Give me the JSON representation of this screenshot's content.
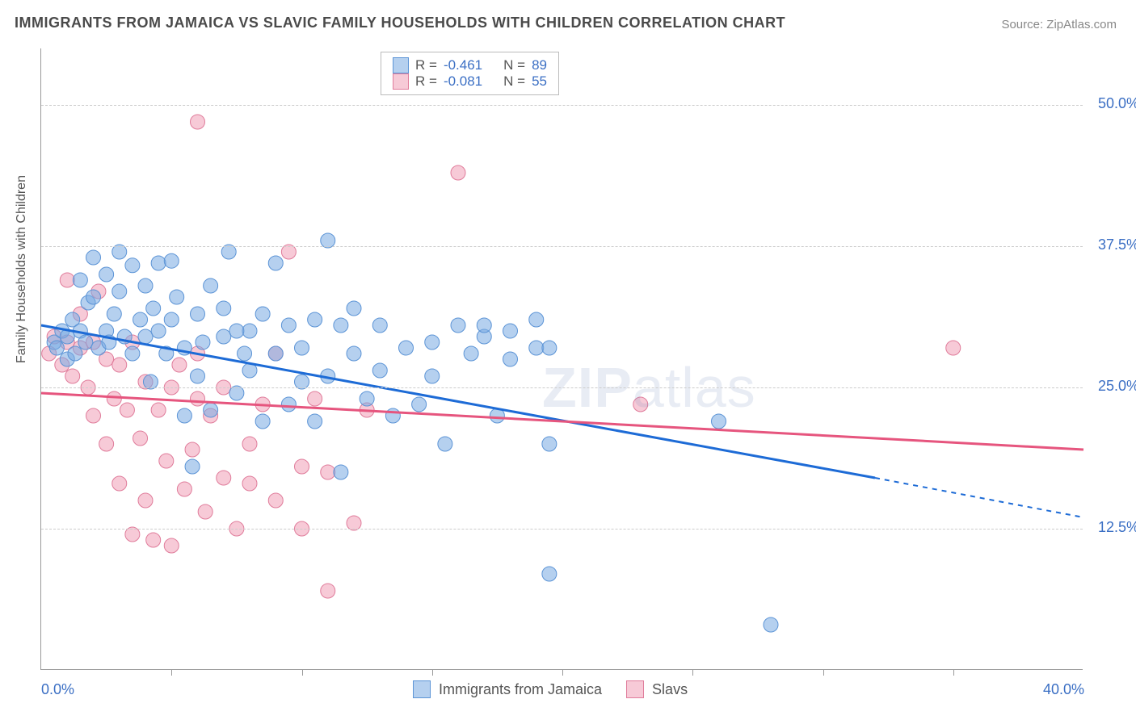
{
  "title": "IMMIGRANTS FROM JAMAICA VS SLAVIC FAMILY HOUSEHOLDS WITH CHILDREN CORRELATION CHART",
  "source": "Source: ZipAtlas.com",
  "ylabel": "Family Households with Children",
  "watermark_a": "ZIP",
  "watermark_b": "atlas",
  "chart": {
    "type": "scatter",
    "xlim": [
      0,
      40
    ],
    "ylim": [
      0,
      55
    ],
    "grid_color": "#cccccc",
    "axis_color": "#999999",
    "background": "#ffffff",
    "tick_label_color": "#3b6fc4",
    "yticks": [
      {
        "v": 12.5,
        "label": "12.5%"
      },
      {
        "v": 25.0,
        "label": "25.0%"
      },
      {
        "v": 37.5,
        "label": "37.5%"
      },
      {
        "v": 50.0,
        "label": "50.0%"
      }
    ],
    "xticks_labeled": [
      {
        "v": 0,
        "label": "0.0%"
      },
      {
        "v": 40,
        "label": "40.0%"
      }
    ],
    "xticks_unlabeled": [
      5,
      10,
      15,
      20,
      25,
      30,
      35
    ],
    "series": [
      {
        "name": "Immigrants from Jamaica",
        "color_fill": "rgba(120,170,225,0.55)",
        "color_stroke": "#5c94d6",
        "trend_color": "#1d6bd6",
        "R": "-0.461",
        "N": "89",
        "marker_radius": 9,
        "trend": {
          "x1": 0,
          "y1": 30.5,
          "x2": 32,
          "y2": 17,
          "dash_from_x": 32,
          "dash_to_x": 40,
          "dash_to_y": 13.5
        },
        "points": [
          [
            0.5,
            29
          ],
          [
            0.6,
            28.5
          ],
          [
            0.8,
            30
          ],
          [
            1,
            27.5
          ],
          [
            1,
            29.5
          ],
          [
            1.2,
            31
          ],
          [
            1.3,
            28
          ],
          [
            1.5,
            34.5
          ],
          [
            1.5,
            30
          ],
          [
            1.7,
            29
          ],
          [
            1.8,
            32.5
          ],
          [
            2,
            33
          ],
          [
            2,
            36.5
          ],
          [
            2.2,
            28.5
          ],
          [
            2.5,
            30
          ],
          [
            2.5,
            35
          ],
          [
            2.6,
            29
          ],
          [
            2.8,
            31.5
          ],
          [
            3,
            37
          ],
          [
            3,
            33.5
          ],
          [
            3.2,
            29.5
          ],
          [
            3.5,
            35.8
          ],
          [
            3.5,
            28
          ],
          [
            3.8,
            31
          ],
          [
            4,
            29.5
          ],
          [
            4,
            34
          ],
          [
            4.2,
            25.5
          ],
          [
            4.5,
            36
          ],
          [
            4.5,
            30
          ],
          [
            4.8,
            28
          ],
          [
            5,
            36.2
          ],
          [
            5,
            31
          ],
          [
            5.2,
            33
          ],
          [
            5.5,
            28.5
          ],
          [
            5.5,
            22.5
          ],
          [
            5.8,
            18
          ],
          [
            6,
            31.5
          ],
          [
            6,
            26
          ],
          [
            6.2,
            29
          ],
          [
            6.5,
            34
          ],
          [
            6.5,
            23
          ],
          [
            7,
            29.5
          ],
          [
            7,
            32
          ],
          [
            7.2,
            37
          ],
          [
            7.5,
            24.5
          ],
          [
            7.8,
            28
          ],
          [
            8,
            30
          ],
          [
            8,
            26.5
          ],
          [
            8.5,
            31.5
          ],
          [
            8.5,
            22
          ],
          [
            9,
            36
          ],
          [
            9,
            28
          ],
          [
            9.5,
            30.5
          ],
          [
            9.5,
            23.5
          ],
          [
            10,
            25.5
          ],
          [
            10,
            28.5
          ],
          [
            10.5,
            31
          ],
          [
            10.5,
            22
          ],
          [
            11,
            38
          ],
          [
            11,
            26
          ],
          [
            11.5,
            30.5
          ],
          [
            11.5,
            17.5
          ],
          [
            12,
            28
          ],
          [
            12,
            32
          ],
          [
            12.5,
            24
          ],
          [
            13,
            30.5
          ],
          [
            13,
            26.5
          ],
          [
            13.5,
            22.5
          ],
          [
            14,
            28.5
          ],
          [
            14.5,
            23.5
          ],
          [
            15,
            26
          ],
          [
            15,
            29
          ],
          [
            15.5,
            20
          ],
          [
            16,
            30.5
          ],
          [
            16.5,
            28
          ],
          [
            17,
            29.5
          ],
          [
            17.5,
            22.5
          ],
          [
            18,
            30
          ],
          [
            18,
            27.5
          ],
          [
            19,
            31
          ],
          [
            19,
            28.5
          ],
          [
            19.5,
            20
          ],
          [
            19.5,
            8.5
          ],
          [
            19.5,
            28.5
          ],
          [
            26,
            22
          ],
          [
            28,
            4
          ],
          [
            17,
            30.5
          ],
          [
            7.5,
            30
          ],
          [
            4.3,
            32
          ]
        ]
      },
      {
        "name": "Slavs",
        "color_fill": "rgba(240,150,175,0.5)",
        "color_stroke": "#e07c9b",
        "trend_color": "#e6557e",
        "R": "-0.081",
        "N": "55",
        "marker_radius": 9,
        "trend": {
          "x1": 0,
          "y1": 24.5,
          "x2": 40,
          "y2": 19.5,
          "dash_from_x": 40,
          "dash_to_x": 40,
          "dash_to_y": 19.5
        },
        "points": [
          [
            0.3,
            28
          ],
          [
            0.5,
            29.5
          ],
          [
            0.8,
            27
          ],
          [
            1,
            29
          ],
          [
            1,
            34.5
          ],
          [
            1.2,
            26
          ],
          [
            1.5,
            28.5
          ],
          [
            1.5,
            31.5
          ],
          [
            1.8,
            25
          ],
          [
            2,
            29
          ],
          [
            2,
            22.5
          ],
          [
            2.2,
            33.5
          ],
          [
            2.5,
            27.5
          ],
          [
            2.5,
            20
          ],
          [
            2.8,
            24
          ],
          [
            3,
            16.5
          ],
          [
            3,
            27
          ],
          [
            3.3,
            23
          ],
          [
            3.5,
            12
          ],
          [
            3.5,
            29
          ],
          [
            3.8,
            20.5
          ],
          [
            4,
            25.5
          ],
          [
            4,
            15
          ],
          [
            4.3,
            11.5
          ],
          [
            4.5,
            23
          ],
          [
            4.8,
            18.5
          ],
          [
            5,
            11
          ],
          [
            5,
            25
          ],
          [
            5.3,
            27
          ],
          [
            5.5,
            16
          ],
          [
            5.8,
            19.5
          ],
          [
            6,
            24
          ],
          [
            6,
            48.5
          ],
          [
            6.3,
            14
          ],
          [
            6.5,
            22.5
          ],
          [
            7,
            17
          ],
          [
            7,
            25
          ],
          [
            7.5,
            12.5
          ],
          [
            8,
            20
          ],
          [
            8,
            16.5
          ],
          [
            8.5,
            23.5
          ],
          [
            9,
            15
          ],
          [
            9.5,
            37
          ],
          [
            10,
            18
          ],
          [
            10,
            12.5
          ],
          [
            10.5,
            24
          ],
          [
            11,
            17.5
          ],
          [
            11,
            7
          ],
          [
            12,
            13
          ],
          [
            12.5,
            23
          ],
          [
            16,
            44
          ],
          [
            23,
            23.5
          ],
          [
            35,
            28.5
          ],
          [
            9,
            28
          ],
          [
            6,
            28
          ]
        ]
      }
    ]
  },
  "legend_top": {
    "R_label": "R =",
    "N_label": "N ="
  }
}
